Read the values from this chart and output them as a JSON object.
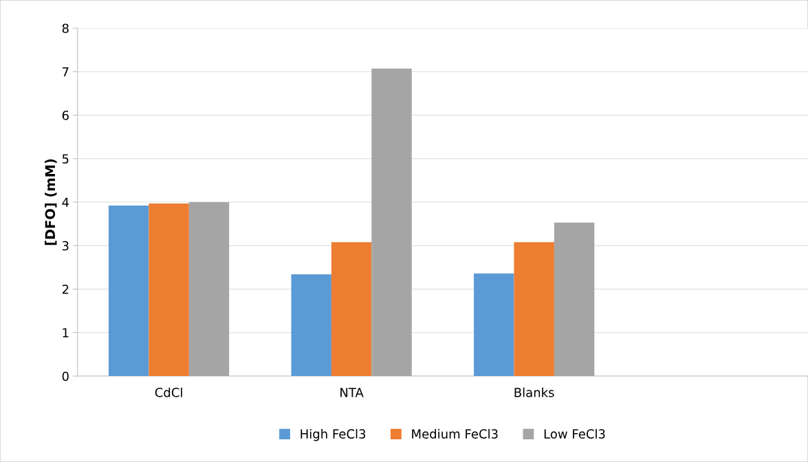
{
  "chart_data": {
    "type": "bar",
    "ylabel": "[DFO] (mM)",
    "categories": [
      "CdCl",
      "NTA",
      "Blanks",
      null
    ],
    "series": [
      {
        "name": "High FeCl3",
        "color": "#5b9bd5",
        "values": [
          3.92,
          2.34,
          2.36,
          null
        ]
      },
      {
        "name": "Medium FeCl3",
        "color": "#ed7d31",
        "values": [
          3.97,
          3.08,
          3.08,
          null
        ]
      },
      {
        "name": "Low FeCl3",
        "color": "#a5a5a5",
        "values": [
          4.0,
          7.07,
          3.53,
          null
        ]
      }
    ],
    "ylim": [
      0,
      8
    ],
    "yticks": [
      0,
      1,
      2,
      3,
      4,
      5,
      6,
      7,
      8
    ],
    "grid": "y",
    "legend": "bottom"
  }
}
